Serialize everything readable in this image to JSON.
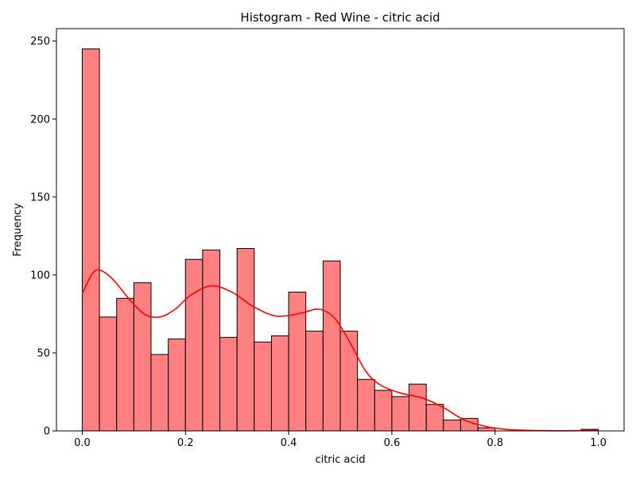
{
  "chart_data": {
    "type": "bar",
    "title": "Histogram - Red Wine - citric acid",
    "xlabel": "citric acid",
    "ylabel": "Frequency",
    "xlim": [
      -0.05,
      1.05
    ],
    "ylim": [
      0,
      258
    ],
    "x_ticks": [
      0.0,
      0.2,
      0.4,
      0.6,
      0.8,
      1.0
    ],
    "x_tick_labels": [
      "0.0",
      "0.2",
      "0.4",
      "0.6",
      "0.8",
      "1.0"
    ],
    "y_ticks": [
      0,
      50,
      100,
      150,
      200,
      250
    ],
    "y_tick_labels": [
      "0",
      "50",
      "100",
      "150",
      "200",
      "250"
    ],
    "grid": false,
    "bin_width": 0.0333,
    "bins": [
      {
        "start": 0.0,
        "end": 0.0333,
        "count": 245
      },
      {
        "start": 0.0333,
        "end": 0.0667,
        "count": 73
      },
      {
        "start": 0.0667,
        "end": 0.1,
        "count": 85
      },
      {
        "start": 0.1,
        "end": 0.1333,
        "count": 95
      },
      {
        "start": 0.1333,
        "end": 0.1667,
        "count": 49
      },
      {
        "start": 0.1667,
        "end": 0.2,
        "count": 59
      },
      {
        "start": 0.2,
        "end": 0.2333,
        "count": 110
      },
      {
        "start": 0.2333,
        "end": 0.2667,
        "count": 116
      },
      {
        "start": 0.2667,
        "end": 0.3,
        "count": 60
      },
      {
        "start": 0.3,
        "end": 0.3333,
        "count": 117
      },
      {
        "start": 0.3333,
        "end": 0.3667,
        "count": 57
      },
      {
        "start": 0.3667,
        "end": 0.4,
        "count": 61
      },
      {
        "start": 0.4,
        "end": 0.4333,
        "count": 89
      },
      {
        "start": 0.4333,
        "end": 0.4667,
        "count": 64
      },
      {
        "start": 0.4667,
        "end": 0.5,
        "count": 109
      },
      {
        "start": 0.5,
        "end": 0.5333,
        "count": 64
      },
      {
        "start": 0.5333,
        "end": 0.5667,
        "count": 33
      },
      {
        "start": 0.5667,
        "end": 0.6,
        "count": 26
      },
      {
        "start": 0.6,
        "end": 0.6333,
        "count": 22
      },
      {
        "start": 0.6333,
        "end": 0.6667,
        "count": 30
      },
      {
        "start": 0.6667,
        "end": 0.7,
        "count": 17
      },
      {
        "start": 0.7,
        "end": 0.7333,
        "count": 7
      },
      {
        "start": 0.7333,
        "end": 0.7667,
        "count": 8
      },
      {
        "start": 0.7667,
        "end": 0.8,
        "count": 2
      },
      {
        "start": 0.9667,
        "end": 1.0,
        "count": 1
      }
    ],
    "kde": {
      "x": [
        0.0,
        0.02,
        0.035,
        0.06,
        0.09,
        0.12,
        0.15,
        0.18,
        0.21,
        0.25,
        0.29,
        0.33,
        0.37,
        0.4,
        0.43,
        0.46,
        0.49,
        0.52,
        0.55,
        0.58,
        0.62,
        0.66,
        0.7,
        0.74,
        0.78,
        0.82,
        0.88,
        0.94,
        1.0
      ],
      "y": [
        88,
        101,
        103,
        97,
        85,
        75,
        73,
        78,
        87,
        93,
        89,
        80,
        74,
        74,
        76,
        78,
        72,
        56,
        38,
        29,
        24,
        21,
        15,
        7,
        3,
        1,
        0.2,
        0.1,
        0.3
      ]
    },
    "colors": {
      "bar_fill": "#ff8080",
      "bar_edge": "#000000",
      "kde_line": "#ff0000"
    }
  }
}
